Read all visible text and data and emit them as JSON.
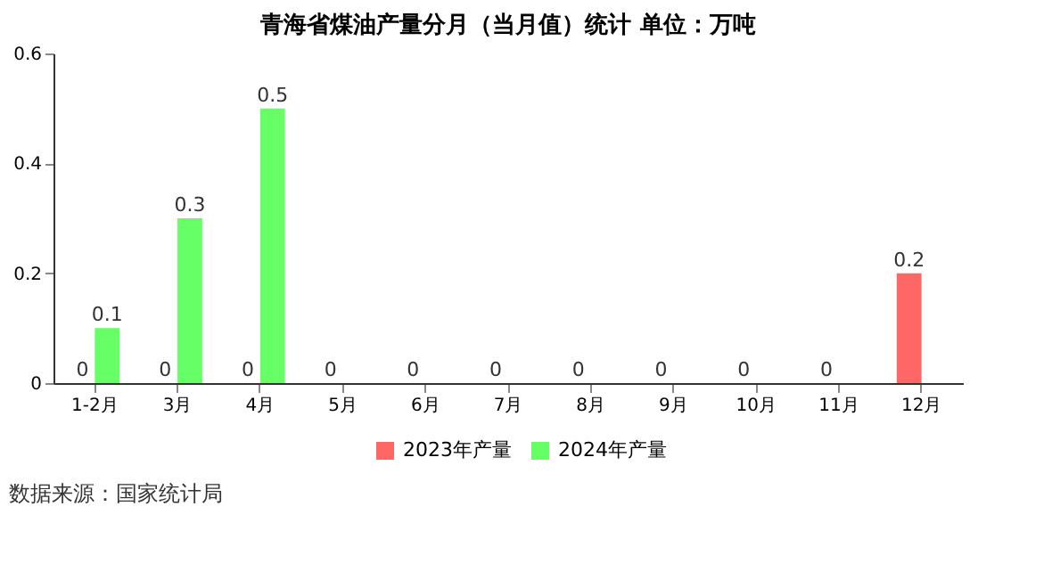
{
  "chart_data": {
    "type": "bar",
    "title": "青海省煤油产量分月（当月值）统计  单位：万吨",
    "categories": [
      "1-2月",
      "3月",
      "4月",
      "5月",
      "6月",
      "7月",
      "8月",
      "9月",
      "10月",
      "11月",
      "12月"
    ],
    "series": [
      {
        "name": "2023年产量",
        "color": "#ff6666",
        "values": [
          0,
          0,
          0,
          0,
          0,
          0,
          0,
          0,
          0,
          0,
          0.2
        ]
      },
      {
        "name": "2024年产量",
        "color": "#66ff66",
        "values": [
          0.1,
          0.3,
          0.5,
          null,
          null,
          null,
          null,
          null,
          null,
          null,
          null
        ]
      }
    ],
    "ylim": [
      0,
      0.6
    ],
    "yticks": [
      0,
      0.2,
      0.4,
      0.6
    ],
    "grid": false,
    "legend": "bottom",
    "data_labels": true,
    "annotations": [
      "数据来源：国家统计局"
    ]
  }
}
